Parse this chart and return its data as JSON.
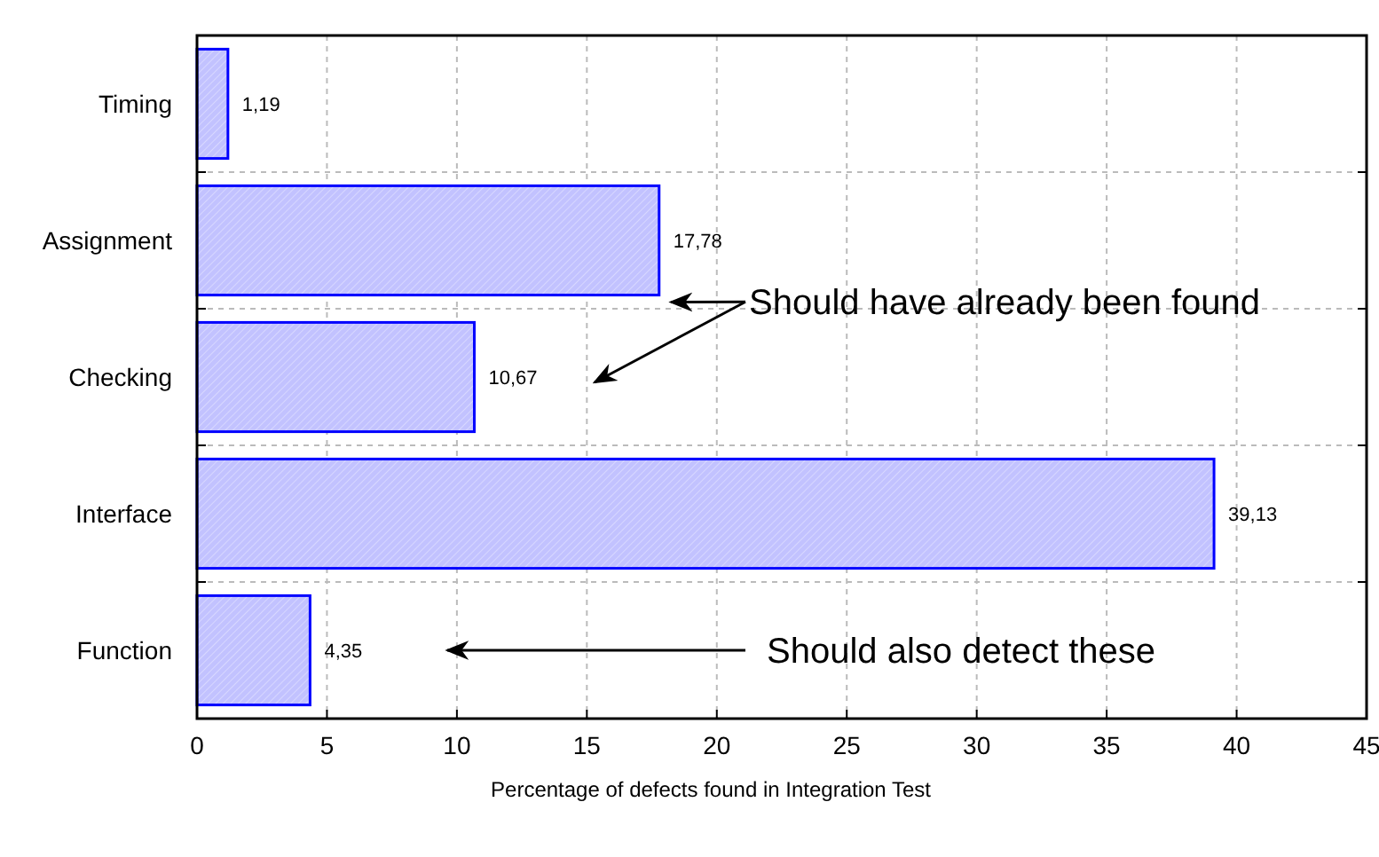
{
  "chart_data": {
    "type": "bar",
    "orientation": "horizontal",
    "categories": [
      "Timing",
      "Assignment",
      "Checking",
      "Interface",
      "Function"
    ],
    "values": [
      1.19,
      17.78,
      10.67,
      39.13,
      4.35
    ],
    "value_labels": [
      "1,19",
      "17,78",
      "10,67",
      "39,13",
      "4,35"
    ],
    "color": "#0000ff",
    "xlim": [
      0,
      45
    ],
    "xticks": [
      0,
      5,
      10,
      15,
      20,
      25,
      30,
      35,
      40,
      45
    ],
    "xlabel": "Percentage of defects found in Integration Test",
    "grid": true,
    "annotations": [
      "Should have already been found",
      "Should also detect these"
    ]
  }
}
